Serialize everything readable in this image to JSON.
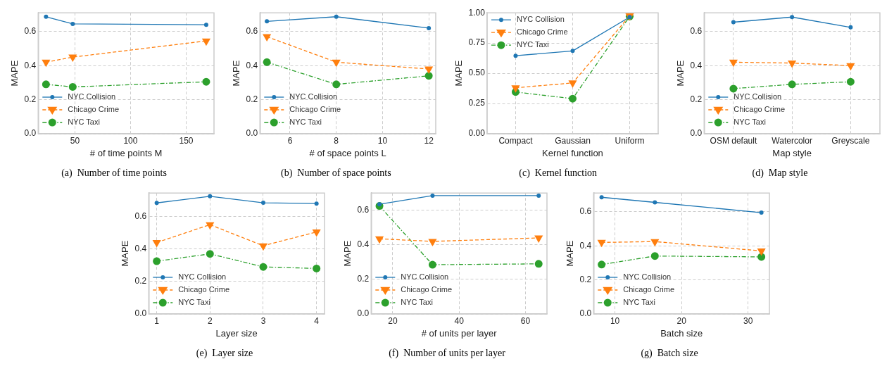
{
  "chart_data": [
    {
      "type": "line",
      "xlabel": "# of time points M",
      "ylabel": "MAPE",
      "annotations": [
        "(a)  Number of time points"
      ],
      "x": [
        24,
        48,
        168
      ],
      "xlim": [
        17,
        175
      ],
      "xticks": [
        50,
        100,
        150
      ],
      "ylim": [
        0,
        0.71
      ],
      "yticks": [
        {
          "value": 0,
          "label": "0.0"
        },
        0.2,
        0.4,
        0.6
      ],
      "grid": true,
      "legend": "bottom left",
      "series": [
        {
          "name": "NYC Collision",
          "color": "#1f77b4",
          "marker": "circle",
          "line_style": "solid",
          "values": [
            0.687,
            0.645,
            0.64
          ]
        },
        {
          "name": "Chicago Crime",
          "color": "#ff7f0e",
          "marker": "triangle",
          "line_style": "dashed",
          "values": [
            0.42,
            0.45,
            0.545
          ]
        },
        {
          "name": "NYC Taxi",
          "color": "#2ca02c",
          "marker": "circle",
          "line_style": "dashdot",
          "values": [
            0.29,
            0.275,
            0.305
          ]
        }
      ]
    },
    {
      "type": "line",
      "xlabel": "# of space points L",
      "ylabel": "MAPE",
      "annotations": [
        "(b)  Number of space points"
      ],
      "x": [
        5,
        8,
        12
      ],
      "xlim": [
        4.7,
        12.3
      ],
      "xticks": [
        6,
        8,
        10,
        12
      ],
      "ylim": [
        0,
        0.71
      ],
      "yticks": [
        {
          "value": 0,
          "label": "0.0"
        },
        0.2,
        0.4,
        0.6
      ],
      "grid": true,
      "legend": "bottom left",
      "series": [
        {
          "name": "NYC Collision",
          "color": "#1f77b4",
          "marker": "circle",
          "line_style": "solid",
          "values": [
            0.66,
            0.687,
            0.62
          ]
        },
        {
          "name": "Chicago Crime",
          "color": "#ff7f0e",
          "marker": "triangle",
          "line_style": "dashed",
          "values": [
            0.57,
            0.42,
            0.38
          ]
        },
        {
          "name": "NYC Taxi",
          "color": "#2ca02c",
          "marker": "circle",
          "line_style": "dashdot",
          "values": [
            0.42,
            0.29,
            0.34
          ]
        }
      ]
    },
    {
      "type": "line",
      "xlabel": "Kernel function",
      "ylabel": "MAPE",
      "annotations": [
        "(c)  Kernel function"
      ],
      "categories": [
        "Compact",
        "Gaussian",
        "Uniform"
      ],
      "ylim": [
        0,
        1
      ],
      "yticks": [
        {
          "value": 0,
          "label": "0.00"
        },
        0.25,
        {
          "value": 0.5,
          "label": "0.50"
        },
        0.75,
        {
          "value": 1,
          "label": "1.00"
        }
      ],
      "grid": true,
      "legend": "top left",
      "series": [
        {
          "name": "NYC Collision",
          "color": "#1f77b4",
          "marker": "circle",
          "line_style": "solid",
          "values": [
            0.645,
            0.685,
            0.965
          ]
        },
        {
          "name": "Chicago Crime",
          "color": "#ff7f0e",
          "marker": "triangle",
          "line_style": "dashed",
          "values": [
            0.38,
            0.42,
            0.975
          ]
        },
        {
          "name": "NYC Taxi",
          "color": "#2ca02c",
          "marker": "circle",
          "line_style": "dashdot",
          "values": [
            0.345,
            0.29,
            0.97
          ]
        }
      ]
    },
    {
      "type": "line",
      "xlabel": "Map style",
      "ylabel": "MAPE",
      "annotations": [
        "(d)  Map style"
      ],
      "categories": [
        "OSM default",
        "Watercolor",
        "Greyscale"
      ],
      "ylim": [
        0,
        0.71
      ],
      "yticks": [
        {
          "value": 0,
          "label": "0.0"
        },
        0.2,
        0.4,
        0.6
      ],
      "grid": true,
      "legend": "bottom left",
      "series": [
        {
          "name": "NYC Collision",
          "color": "#1f77b4",
          "marker": "circle",
          "line_style": "solid",
          "values": [
            0.655,
            0.685,
            0.625
          ]
        },
        {
          "name": "Chicago Crime",
          "color": "#ff7f0e",
          "marker": "triangle",
          "line_style": "dashed",
          "values": [
            0.42,
            0.415,
            0.4
          ]
        },
        {
          "name": "NYC Taxi",
          "color": "#2ca02c",
          "marker": "circle",
          "line_style": "dashdot",
          "values": [
            0.265,
            0.29,
            0.305
          ]
        }
      ]
    },
    {
      "type": "line",
      "xlabel": "Layer size",
      "ylabel": "MAPE",
      "annotations": [
        "(e)  Layer size"
      ],
      "x": [
        1,
        2,
        3,
        4
      ],
      "xlim": [
        0.85,
        4.15
      ],
      "xticks": [
        1,
        2,
        3,
        4
      ],
      "ylim": [
        0,
        0.745
      ],
      "yticks": [
        {
          "value": 0,
          "label": "0.0"
        },
        0.2,
        0.4,
        0.6
      ],
      "grid": true,
      "legend": "bottom left",
      "series": [
        {
          "name": "NYC Collision",
          "color": "#1f77b4",
          "marker": "circle",
          "line_style": "solid",
          "values": [
            0.684,
            0.725,
            0.685,
            0.68
          ]
        },
        {
          "name": "Chicago Crime",
          "color": "#ff7f0e",
          "marker": "triangle",
          "line_style": "dashed",
          "values": [
            0.44,
            0.55,
            0.42,
            0.505
          ]
        },
        {
          "name": "NYC Taxi",
          "color": "#2ca02c",
          "marker": "circle",
          "line_style": "dashdot",
          "values": [
            0.325,
            0.37,
            0.29,
            0.28
          ]
        }
      ]
    },
    {
      "type": "line",
      "xlabel": "# of units per layer",
      "ylabel": "MAPE",
      "annotations": [
        "(f)  Number of units per layer"
      ],
      "x": [
        16,
        32,
        64
      ],
      "xlim": [
        13.5,
        66.5
      ],
      "xticks": [
        20,
        40,
        60
      ],
      "ylim": [
        0,
        0.7
      ],
      "yticks": [
        {
          "value": 0,
          "label": "0.0"
        },
        0.2,
        0.4,
        0.6
      ],
      "grid": true,
      "legend": "bottom left",
      "series": [
        {
          "name": "NYC Collision",
          "color": "#1f77b4",
          "marker": "circle",
          "line_style": "solid",
          "values": [
            0.635,
            0.685,
            0.685
          ]
        },
        {
          "name": "Chicago Crime",
          "color": "#ff7f0e",
          "marker": "triangle",
          "line_style": "dashed",
          "values": [
            0.435,
            0.42,
            0.44
          ]
        },
        {
          "name": "NYC Taxi",
          "color": "#2ca02c",
          "marker": "circle",
          "line_style": "dashdot",
          "values": [
            0.625,
            0.285,
            0.29
          ]
        }
      ]
    },
    {
      "type": "line",
      "xlabel": "Batch size",
      "ylabel": "MAPE",
      "annotations": [
        "(g)  Batch size"
      ],
      "x": [
        8,
        16,
        32
      ],
      "xlim": [
        6.8,
        33.2
      ],
      "xticks": [
        10,
        20,
        30
      ],
      "ylim": [
        0,
        0.71
      ],
      "yticks": [
        {
          "value": 0,
          "label": "0.0"
        },
        0.2,
        0.4,
        0.6
      ],
      "grid": true,
      "legend": "bottom left",
      "series": [
        {
          "name": "NYC Collision",
          "color": "#1f77b4",
          "marker": "circle",
          "line_style": "solid",
          "values": [
            0.685,
            0.655,
            0.595
          ]
        },
        {
          "name": "Chicago Crime",
          "color": "#ff7f0e",
          "marker": "triangle",
          "line_style": "dashed",
          "values": [
            0.42,
            0.425,
            0.37
          ]
        },
        {
          "name": "NYC Taxi",
          "color": "#2ca02c",
          "marker": "circle",
          "line_style": "dashdot",
          "values": [
            0.29,
            0.34,
            0.335
          ]
        }
      ]
    }
  ]
}
